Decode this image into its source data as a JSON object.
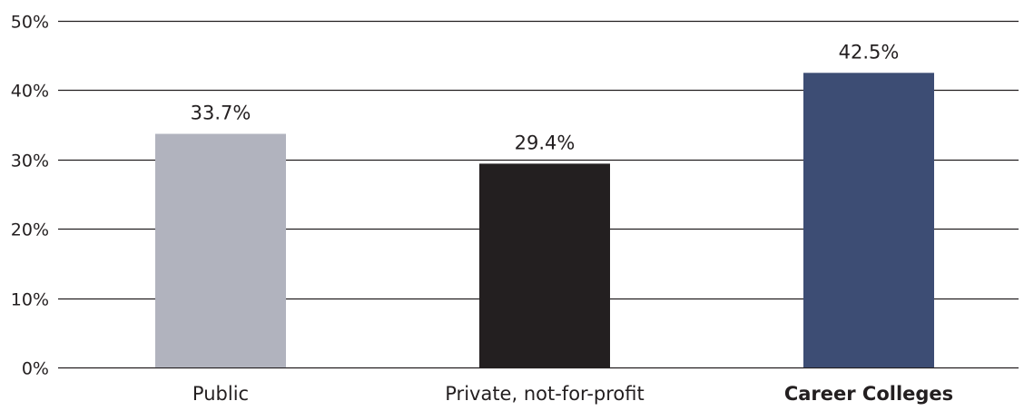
{
  "chart_data": {
    "type": "bar",
    "categories": [
      "Public",
      "Private, not-for-profit",
      "Career Colleges"
    ],
    "values": [
      33.7,
      29.4,
      42.5
    ],
    "value_labels": [
      "33.7%",
      "29.4%",
      "42.5%"
    ],
    "bar_colors": [
      "#b1b3be",
      "#231f20",
      "#3d4d74"
    ],
    "bold_categories": [
      false,
      false,
      true
    ],
    "ylim": [
      0,
      50
    ],
    "yticks": [
      0,
      10,
      20,
      30,
      40,
      50
    ],
    "ytick_labels": [
      "0%",
      "10%",
      "20%",
      "30%",
      "40%",
      "50%"
    ],
    "grid": true,
    "legend": false,
    "title": "",
    "xlabel": "",
    "ylabel": ""
  }
}
